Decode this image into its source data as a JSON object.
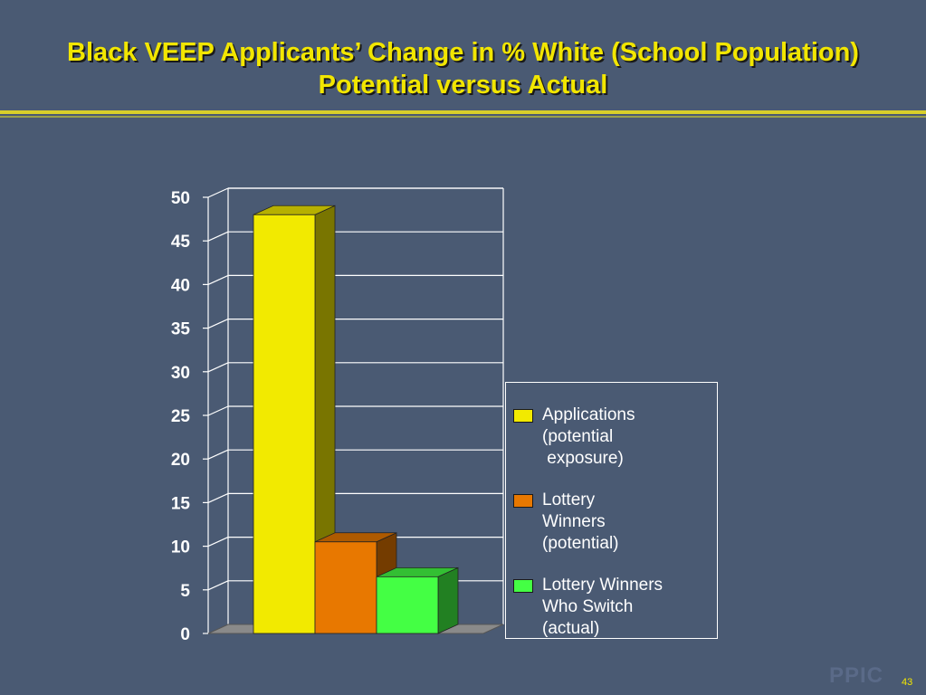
{
  "slide": {
    "title_line1": "Black VEEP Applicants’ Change in % White (School Population)",
    "title_line2": "Potential versus Actual",
    "watermark": "PPIC",
    "page_number": "43",
    "colors": {
      "background": "#4a5a73",
      "title": "#f2e600"
    }
  },
  "chart_data": {
    "type": "bar",
    "categories": [
      "Applications\n(potential\n exposure)",
      "Lottery\nWinners\n(potential)",
      "Lottery Winners\nWho Switch\n(actual)"
    ],
    "values": [
      48,
      10.5,
      6.5
    ],
    "colors": [
      "#f2ea00",
      "#e87800",
      "#44ff44"
    ],
    "yticks": [
      0,
      5,
      10,
      15,
      20,
      25,
      30,
      35,
      40,
      45,
      50
    ],
    "ylim": [
      0,
      50
    ],
    "grid": true,
    "legend_position": "right",
    "bar_style": "3d"
  }
}
